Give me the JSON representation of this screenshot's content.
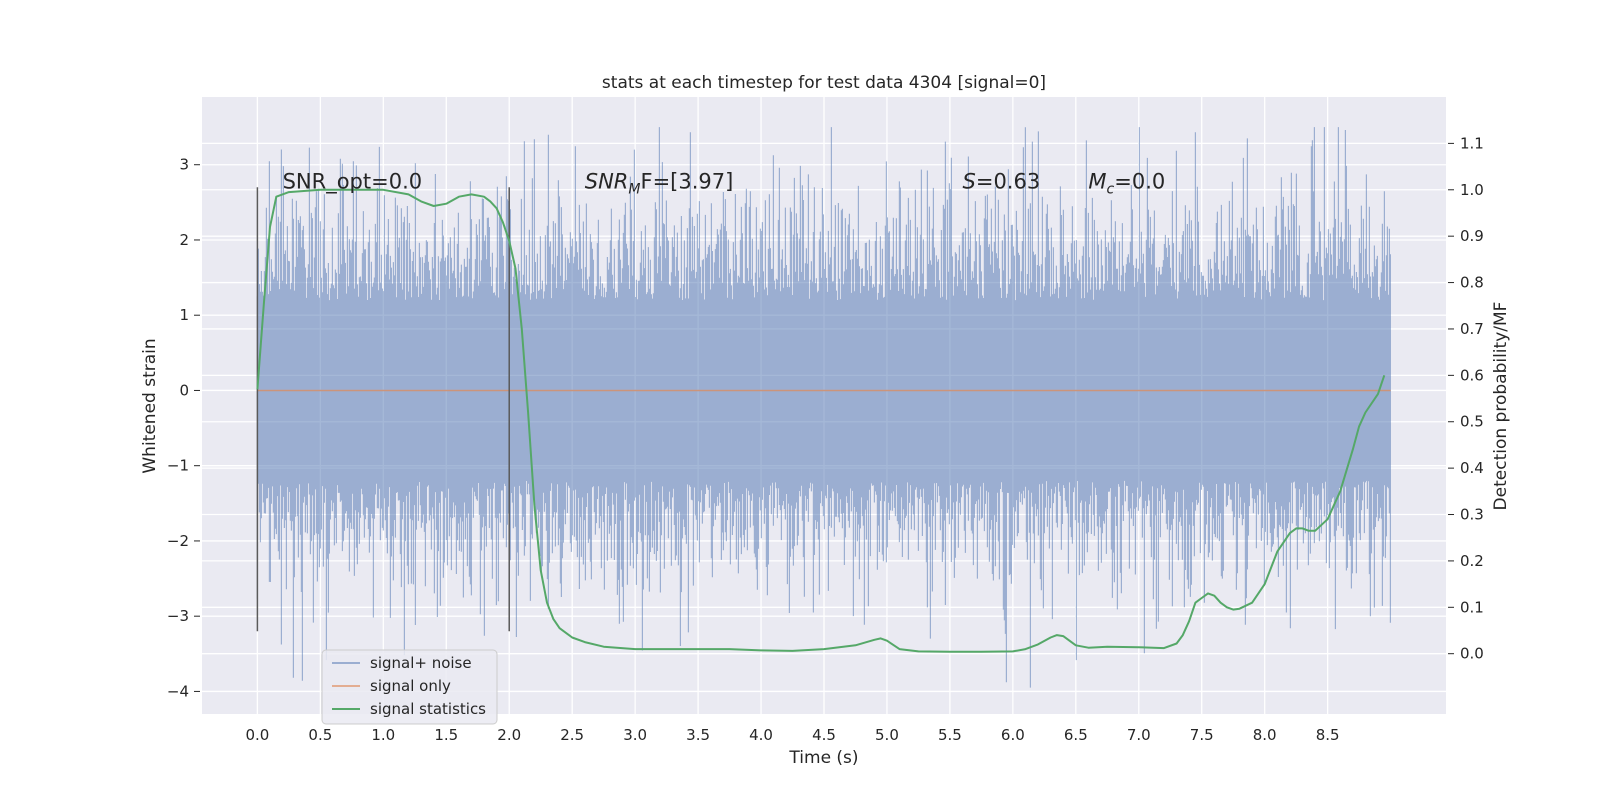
{
  "chart_data": {
    "type": "line",
    "title": "stats at each timestep for test data 4304 [signal=0]",
    "xlabel": "Time (s)",
    "ylabel_left": "Whitened strain",
    "ylabel_right": "Detection probability/MF",
    "xlim": [
      -0.44,
      9.44
    ],
    "ylim_left": [
      -4.3,
      3.9
    ],
    "ylim_right": [
      -0.13,
      1.2
    ],
    "x_ticks": [
      "0.0",
      "0.5",
      "1.0",
      "1.5",
      "2.0",
      "2.5",
      "3.0",
      "3.5",
      "4.0",
      "4.5",
      "5.0",
      "5.5",
      "6.0",
      "6.5",
      "7.0",
      "7.5",
      "8.0",
      "8.5"
    ],
    "y_ticks_left": [
      "3",
      "2",
      "1",
      "0",
      "−1",
      "−2",
      "−3",
      "−4"
    ],
    "y_ticks_right": [
      "1.1",
      "1.0",
      "0.9",
      "0.8",
      "0.7",
      "0.6",
      "0.5",
      "0.4",
      "0.3",
      "0.2",
      "0.1",
      "0.0"
    ],
    "grid": true,
    "annotations": [
      {
        "text": "SNR_opt=0.0",
        "x": 0.2,
        "y": 2.75
      },
      {
        "text": "SNR",
        "sub": "M",
        "suffix": "F=[3.97]",
        "x": 2.6,
        "y": 2.75
      },
      {
        "text": "S",
        "sub": "",
        "suffix": "=0.63",
        "x": 5.6,
        "y": 2.75
      },
      {
        "text": "M",
        "sub": "c",
        "suffix": "=0.0",
        "x": 6.6,
        "y": 2.75
      }
    ],
    "vlines": [
      {
        "x": 0.0,
        "y": [
          -3.2,
          2.7
        ]
      },
      {
        "x": 2.0,
        "y": [
          -3.2,
          2.7
        ]
      }
    ],
    "series": [
      {
        "name": "signal+ noise",
        "color": "#4c72b0",
        "axis": "left",
        "kind": "noise",
        "x_range": [
          0.0,
          9.0
        ],
        "abs_max": [
          3.5,
          -4.0
        ],
        "typical_envelope": [
          1.6,
          -1.6
        ]
      },
      {
        "name": "signal only",
        "color": "#dd8452",
        "axis": "left",
        "x": [
          0.0,
          9.0
        ],
        "values": [
          0.0,
          0.0
        ]
      },
      {
        "name": "signal statistics",
        "color": "#55a868",
        "axis": "right",
        "x": [
          0.0,
          0.05,
          0.1,
          0.15,
          0.25,
          0.5,
          0.75,
          1.0,
          1.2,
          1.3,
          1.4,
          1.5,
          1.6,
          1.7,
          1.8,
          1.85,
          1.9,
          1.95,
          2.0,
          2.05,
          2.1,
          2.15,
          2.2,
          2.25,
          2.3,
          2.35,
          2.4,
          2.5,
          2.6,
          2.75,
          3.0,
          3.25,
          3.5,
          3.75,
          4.0,
          4.25,
          4.5,
          4.75,
          4.9,
          4.95,
          5.0,
          5.1,
          5.25,
          5.5,
          5.75,
          6.0,
          6.1,
          6.2,
          6.3,
          6.35,
          6.4,
          6.45,
          6.5,
          6.6,
          6.75,
          7.0,
          7.2,
          7.3,
          7.35,
          7.4,
          7.45,
          7.5,
          7.55,
          7.6,
          7.65,
          7.7,
          7.75,
          7.8,
          7.9,
          8.0,
          8.1,
          8.2,
          8.25,
          8.3,
          8.35,
          8.4,
          8.5,
          8.6,
          8.7,
          8.75,
          8.8,
          8.9,
          8.95
        ],
        "values": [
          0.57,
          0.75,
          0.92,
          0.985,
          0.995,
          1.0,
          1.0,
          1.0,
          0.99,
          0.975,
          0.965,
          0.97,
          0.985,
          0.99,
          0.985,
          0.975,
          0.96,
          0.93,
          0.89,
          0.83,
          0.7,
          0.52,
          0.32,
          0.18,
          0.11,
          0.075,
          0.055,
          0.035,
          0.025,
          0.015,
          0.01,
          0.01,
          0.01,
          0.01,
          0.007,
          0.006,
          0.01,
          0.018,
          0.03,
          0.033,
          0.028,
          0.01,
          0.005,
          0.004,
          0.004,
          0.005,
          0.01,
          0.02,
          0.035,
          0.04,
          0.038,
          0.028,
          0.018,
          0.013,
          0.015,
          0.014,
          0.012,
          0.022,
          0.04,
          0.07,
          0.11,
          0.12,
          0.13,
          0.125,
          0.11,
          0.1,
          0.095,
          0.097,
          0.11,
          0.15,
          0.22,
          0.26,
          0.27,
          0.27,
          0.265,
          0.265,
          0.29,
          0.35,
          0.44,
          0.49,
          0.52,
          0.56,
          0.6
        ]
      }
    ],
    "legend": {
      "position": "lower-left",
      "entries": [
        "signal+ noise",
        "signal only",
        "signal statistics"
      ]
    },
    "colors": {
      "plot_bg": "#eaeaf2",
      "grid": "#ffffff",
      "vline": "#5a5a5a"
    }
  }
}
